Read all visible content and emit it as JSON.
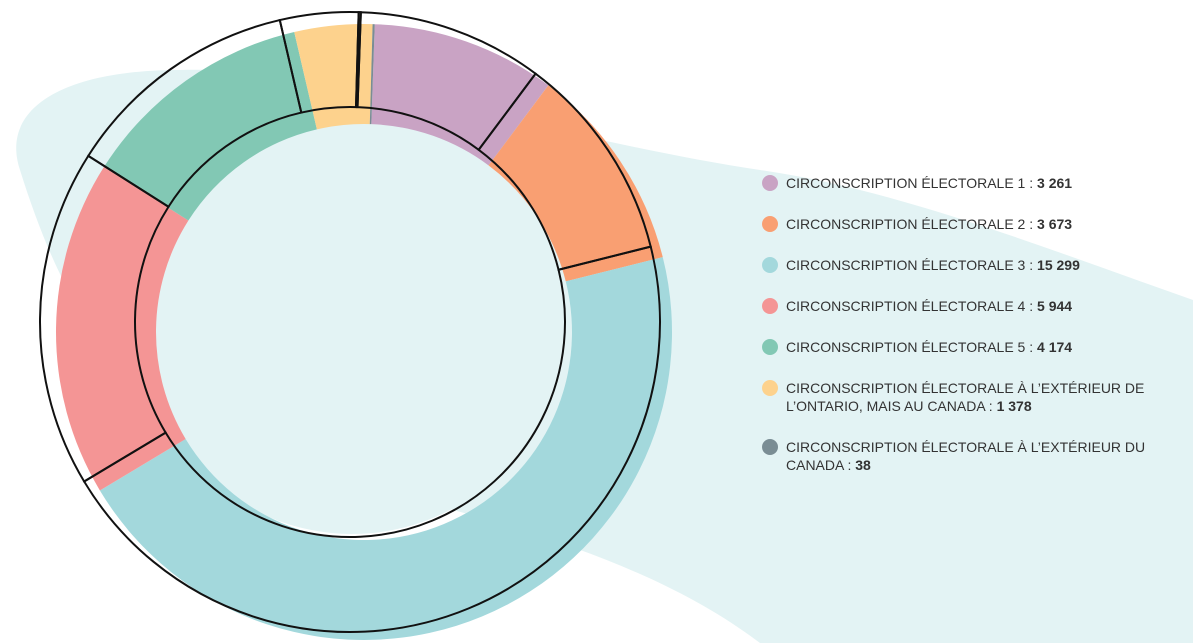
{
  "chart_data": {
    "type": "donut",
    "categories": [
      "CIRCONSCRIPTION ÉLECTORALE 1 :",
      "CIRCONSCRIPTION ÉLECTORALE 2 :",
      "CIRCONSCRIPTION ÉLECTORALE 3 :",
      "CIRCONSCRIPTION ÉLECTORALE 4 :",
      "CIRCONSCRIPTION ÉLECTORALE 5 :",
      "CIRCONSCRIPTION ÉLECTORALE À L’EXTÉRIEUR DE L’ONTARIO, MAIS AU CANADA :",
      "CIRCONSCRIPTION ÉLECTORALE À L’EXTÉRIEUR DU CANADA :"
    ],
    "values": [
      3261,
      3673,
      15299,
      5944,
      4174,
      1378,
      38
    ],
    "value_labels": [
      "3 261",
      "3 673",
      "15 299",
      "5 944",
      "4 174",
      "1 378",
      "38"
    ],
    "colors": [
      "#c9a3c4",
      "#f99f72",
      "#a3d8dc",
      "#f49595",
      "#82c8b4",
      "#fdd28d",
      "#7a8d94"
    ],
    "legend": "right"
  }
}
